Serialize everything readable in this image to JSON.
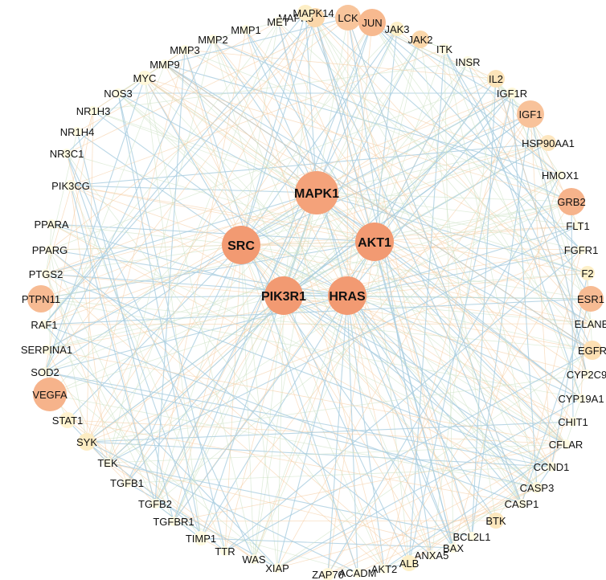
{
  "network": {
    "hubs": [
      {
        "label": "MAPK1",
        "color": "#f4a27a"
      },
      {
        "label": "SRC",
        "color": "#f29a72"
      },
      {
        "label": "AKT1",
        "color": "#f29a72"
      },
      {
        "label": "PIK3R1",
        "color": "#f29a72"
      },
      {
        "label": "HRAS",
        "color": "#f29a72"
      }
    ],
    "ring": [
      {
        "label": "MAPK8",
        "color": "#fbd7aa"
      },
      {
        "label": "MAPK14",
        "color": "#fdeec5"
      },
      {
        "label": "LCK",
        "color": "#f8c59c"
      },
      {
        "label": "JUN",
        "color": "#f7b98f"
      },
      {
        "label": "JAK3",
        "color": "#fdf0c8"
      },
      {
        "label": "JAK2",
        "color": "#fbd7aa"
      },
      {
        "label": "ITK",
        "color": "#fffbe2"
      },
      {
        "label": "INSR",
        "color": "#fffbe2"
      },
      {
        "label": "IL2",
        "color": "#fde4b9"
      },
      {
        "label": "IGF1R",
        "color": "#fff8da"
      },
      {
        "label": "IGF1",
        "color": "#f8c29a"
      },
      {
        "label": "HSP90AA1",
        "color": "#fde6bf"
      },
      {
        "label": "HMOX1",
        "color": "#fffbe2"
      },
      {
        "label": "GRB2",
        "color": "#f6b38b"
      },
      {
        "label": "FLT1",
        "color": "#fffbe2"
      },
      {
        "label": "FGFR1",
        "color": "#fffbe2"
      },
      {
        "label": "F2",
        "color": "#fdf0c8"
      },
      {
        "label": "ESR1",
        "color": "#f7bb93"
      },
      {
        "label": "ELANE",
        "color": "#fffbe2"
      },
      {
        "label": "EGFR",
        "color": "#fde0b3"
      },
      {
        "label": "CYP2C9",
        "color": "#fffbe2"
      },
      {
        "label": "CYP19A1",
        "color": "#fffbe2"
      },
      {
        "label": "CHIT1",
        "color": "#fffbe2"
      },
      {
        "label": "CFLAR",
        "color": "#fffbe2"
      },
      {
        "label": "CCND1",
        "color": "#fffbe2"
      },
      {
        "label": "CASP3",
        "color": "#fff8da"
      },
      {
        "label": "CASP1",
        "color": "#fffbe2"
      },
      {
        "label": "BTK",
        "color": "#fde7bd"
      },
      {
        "label": "BCL2L1",
        "color": "#fffbe2"
      },
      {
        "label": "BAX",
        "color": "#fffbe2"
      },
      {
        "label": "ANXA5",
        "color": "#fffbe2"
      },
      {
        "label": "ALB",
        "color": "#fdf0c8"
      },
      {
        "label": "AKT2",
        "color": "#fffbe2"
      },
      {
        "label": "ACADM",
        "color": "#fffbe2"
      },
      {
        "label": "ZAP70",
        "color": "#fff8da"
      },
      {
        "label": "XIAP",
        "color": "#fffbe2"
      },
      {
        "label": "WAS",
        "color": "#fffbe2"
      },
      {
        "label": "TTR",
        "color": "#fffbe2"
      },
      {
        "label": "TIMP1",
        "color": "#fffbe2"
      },
      {
        "label": "TGFBR1",
        "color": "#fffbe2"
      },
      {
        "label": "TGFB2",
        "color": "#fffbe2"
      },
      {
        "label": "TGFB1",
        "color": "#fffbe2"
      },
      {
        "label": "TEK",
        "color": "#fffbe2"
      },
      {
        "label": "SYK",
        "color": "#fdecc2"
      },
      {
        "label": "STAT1",
        "color": "#fff3cf"
      },
      {
        "label": "VEGFA",
        "color": "#f6b38b"
      },
      {
        "label": "SOD2",
        "color": "#fffbe2"
      },
      {
        "label": "SERPINA1",
        "color": "#fffbe2"
      },
      {
        "label": "RAF1",
        "color": "#fffbe2"
      },
      {
        "label": "PTPN11",
        "color": "#f7bb93"
      },
      {
        "label": "PTGS2",
        "color": "#fffbe2"
      },
      {
        "label": "PPARG",
        "color": "#fffbe2"
      },
      {
        "label": "PPARA",
        "color": "#fffbe2"
      },
      {
        "label": "PIK3CG",
        "color": "#fffbe2"
      },
      {
        "label": "NR3C1",
        "color": "#fffbe2"
      },
      {
        "label": "NR1H4",
        "color": "#fffbe2"
      },
      {
        "label": "NR1H3",
        "color": "#fffbe2"
      },
      {
        "label": "NOS3",
        "color": "#fffbe2"
      },
      {
        "label": "MYC",
        "color": "#fff8da"
      },
      {
        "label": "MMP9",
        "color": "#fffbe2"
      },
      {
        "label": "MMP3",
        "color": "#fffbe2"
      },
      {
        "label": "MMP2",
        "color": "#fffbe2"
      },
      {
        "label": "MMP1",
        "color": "#fffbe2"
      },
      {
        "label": "MET",
        "color": "#fffbe2"
      }
    ],
    "edge_colors": [
      "#a9cde0",
      "#f6cfa8",
      "#cfe3c8"
    ]
  }
}
